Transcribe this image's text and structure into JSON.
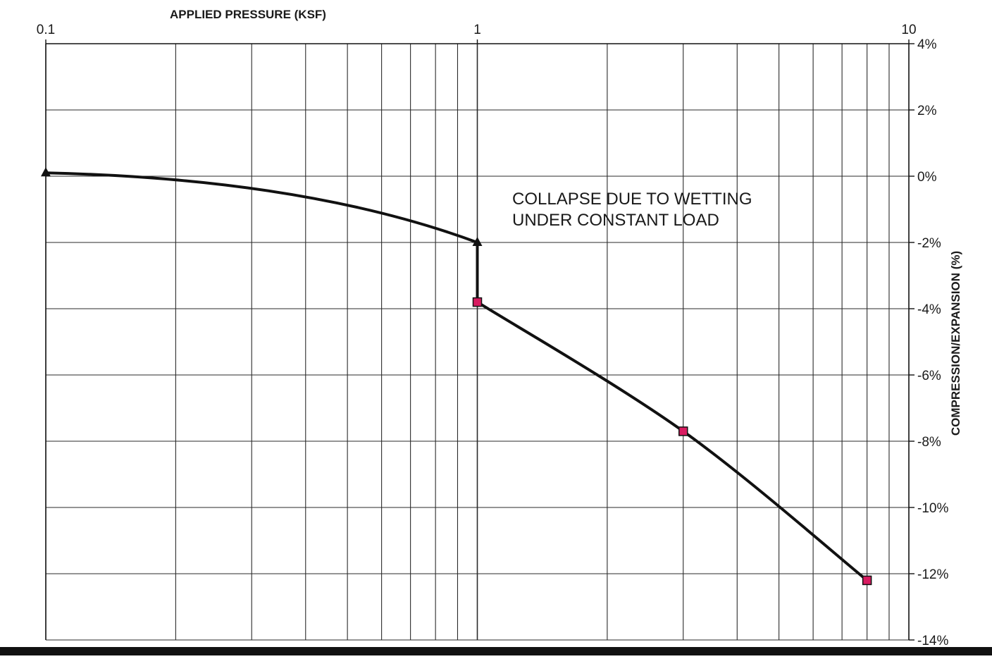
{
  "chart_data": {
    "type": "line",
    "x_axis": {
      "title": "APPLIED PRESSURE (KSF)",
      "scale": "log",
      "range": [
        0.1,
        10
      ],
      "tick_labels": [
        "0.1",
        "1",
        "10"
      ],
      "tick_values": [
        0.1,
        1,
        10
      ],
      "position": "top"
    },
    "y_axis": {
      "title": "COMPRESSION/EXPANSION (%)",
      "range": [
        -14,
        4
      ],
      "tick_values": [
        4,
        2,
        0,
        -2,
        -4,
        -6,
        -8,
        -10,
        -12,
        -14
      ],
      "tick_labels": [
        "4%",
        "2%",
        "0%",
        "-2%",
        "-4%",
        "-6%",
        "-8%",
        "-10%",
        "-12%",
        "-14%"
      ],
      "position": "right"
    },
    "grid": true,
    "series": [
      {
        "marker": "triangle",
        "color": "#111111",
        "points": [
          [
            0.1,
            0.1
          ],
          [
            1.0,
            -2.0
          ]
        ]
      },
      {
        "marker": "square",
        "color": "#111111",
        "marker_color": "#d81b60",
        "points": [
          [
            1.0,
            -3.8
          ],
          [
            3.0,
            -7.7
          ],
          [
            8.0,
            -12.2
          ]
        ]
      }
    ],
    "annotations": [
      {
        "lines": [
          "COLLAPSE DUE TO WETTING",
          "UNDER CONSTANT LOAD"
        ]
      }
    ]
  }
}
